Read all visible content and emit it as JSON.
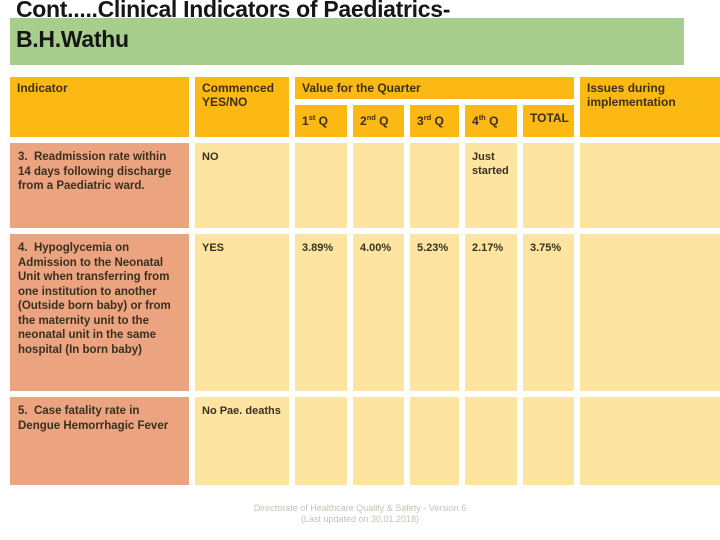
{
  "slide": {
    "title_line1": "Cont.....Clinical Indicators of Paediatrics-",
    "title_line2": "B.H.Wathu"
  },
  "table": {
    "headers": {
      "indicator": "Indicator",
      "commenced": "Commenced YES/NO",
      "value_for_quarter": "Value for the Quarter",
      "total": "TOTAL",
      "issues": "Issues during implementation",
      "quarters": [
        {
          "num": "1",
          "ord": "st",
          "q": "Q"
        },
        {
          "num": "2",
          "ord": "nd",
          "q": "Q"
        },
        {
          "num": "3",
          "ord": "rd",
          "q": "Q"
        },
        {
          "num": "4",
          "ord": "th",
          "q": "Q"
        }
      ]
    },
    "rows": [
      {
        "indicator": "3.  Readmission rate within 14 days following discharge from a Paediatric ward.",
        "commenced": "NO",
        "q1": "",
        "q2": "",
        "q3": "",
        "q4": "Just started",
        "total": "",
        "issues": ""
      },
      {
        "indicator": "4.  Hypoglycemia on Admission to the Neonatal Unit when transferring from one institution to another (Outside born baby) or from the maternity unit to the neonatal unit in the same hospital (In born baby)",
        "commenced": "YES",
        "q1": "3.89%",
        "q2": "4.00%",
        "q3": "5.23%",
        "q4": "2.17%",
        "total": "3.75%",
        "issues": ""
      },
      {
        "indicator": "5.  Case fatality rate in Dengue Hemorrhagic Fever",
        "commenced": "No Pae. deaths",
        "q1": "",
        "q2": "",
        "q3": "",
        "q4": "",
        "total": "",
        "issues": ""
      }
    ]
  },
  "footer": {
    "line1": "Directorate of Healthcare Quality & Safety - Version 6",
    "line2": "(Last updated on 30.01.2018)"
  },
  "colors": {
    "header_gold": "#FCB813",
    "indicator_salmon": "#EBA380",
    "cell_cream": "#FDE5A1",
    "title_green": "#A7CE8C"
  }
}
